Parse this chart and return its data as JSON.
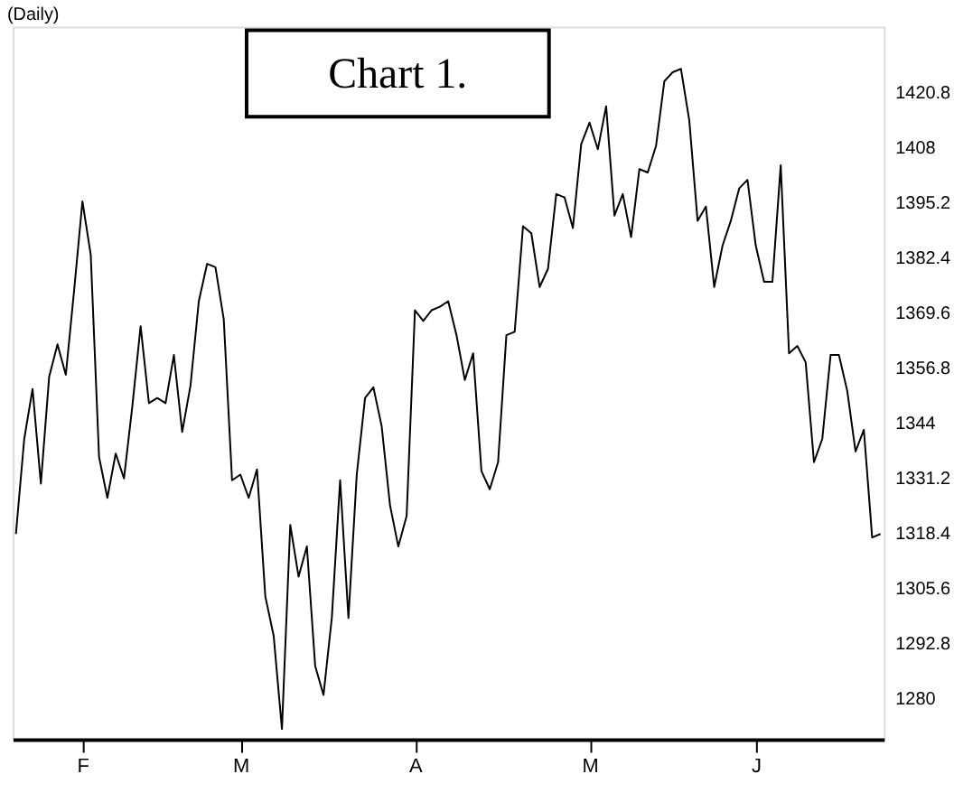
{
  "chart_data": {
    "type": "line",
    "title": "(Daily)",
    "annotations": [
      "Chart 1."
    ],
    "categories": [
      null,
      null,
      null,
      null,
      null,
      null,
      null,
      null,
      "F",
      null,
      null,
      null,
      null,
      null,
      null,
      null,
      null,
      null,
      null,
      null,
      null,
      null,
      null,
      null,
      null,
      null,
      null,
      "M",
      null,
      null,
      null,
      null,
      null,
      null,
      null,
      null,
      null,
      null,
      null,
      null,
      null,
      null,
      null,
      null,
      null,
      null,
      null,
      null,
      "A",
      null,
      null,
      null,
      null,
      null,
      null,
      null,
      null,
      null,
      null,
      null,
      null,
      null,
      null,
      null,
      null,
      null,
      null,
      null,
      null,
      "M",
      null,
      null,
      null,
      null,
      null,
      null,
      null,
      null,
      null,
      null,
      null,
      null,
      null,
      null,
      null,
      null,
      null,
      null,
      null,
      "J",
      null,
      null,
      null,
      null,
      null,
      null,
      null,
      null,
      null,
      null,
      null,
      null,
      null,
      null,
      null
    ],
    "series": [
      {
        "color": "#000000",
        "values": [
          1318.1,
          1340.2,
          1351.8,
          1329.8,
          1354.7,
          1362.2,
          1355.1,
          1374.7,
          1395.4,
          1383.0,
          1336.0,
          1326.5,
          1336.8,
          1331.0,
          1347.7,
          1366.4,
          1348.5,
          1349.7,
          1348.5,
          1359.7,
          1341.8,
          1352.6,
          1372.2,
          1380.9,
          1380.1,
          1368.0,
          1330.6,
          1331.9,
          1326.5,
          1333.1,
          1303.6,
          1294.5,
          1272.8,
          1320.2,
          1308.2,
          1315.2,
          1287.4,
          1280.7,
          1298.6,
          1330.6,
          1298.6,
          1331.9,
          1349.7,
          1352.2,
          1343.1,
          1324.8,
          1315.2,
          1322.3,
          1370.1,
          1367.6,
          1370.1,
          1370.9,
          1372.2,
          1364.3,
          1353.9,
          1360.1,
          1332.7,
          1328.5,
          1334.8,
          1364.3,
          1365.1,
          1389.6,
          1388.0,
          1375.5,
          1379.7,
          1397.1,
          1396.3,
          1389.2,
          1408.7,
          1413.7,
          1407.5,
          1417.5,
          1392.1,
          1397.1,
          1387.1,
          1402.9,
          1402.1,
          1408.3,
          1423.3,
          1425.4,
          1426.2,
          1414.2,
          1390.9,
          1394.2,
          1375.5,
          1385.1,
          1390.9,
          1398.4,
          1400.4,
          1385.1,
          1376.7,
          1376.7,
          1403.8,
          1360.1,
          1361.8,
          1358.0,
          1334.8,
          1340.2,
          1359.7,
          1359.7,
          1351.4,
          1337.3,
          1342.3,
          1317.3,
          1318.1
        ]
      }
    ],
    "ylim": [
      1270.4,
      1436
    ],
    "yticks": [
      1280,
      1292.8,
      1305.6,
      1318.4,
      1331.2,
      1344,
      1356.8,
      1369.6,
      1382.4,
      1395.2,
      1408,
      1420.8
    ],
    "grid": false,
    "marker": "none",
    "line_style": "solid"
  }
}
